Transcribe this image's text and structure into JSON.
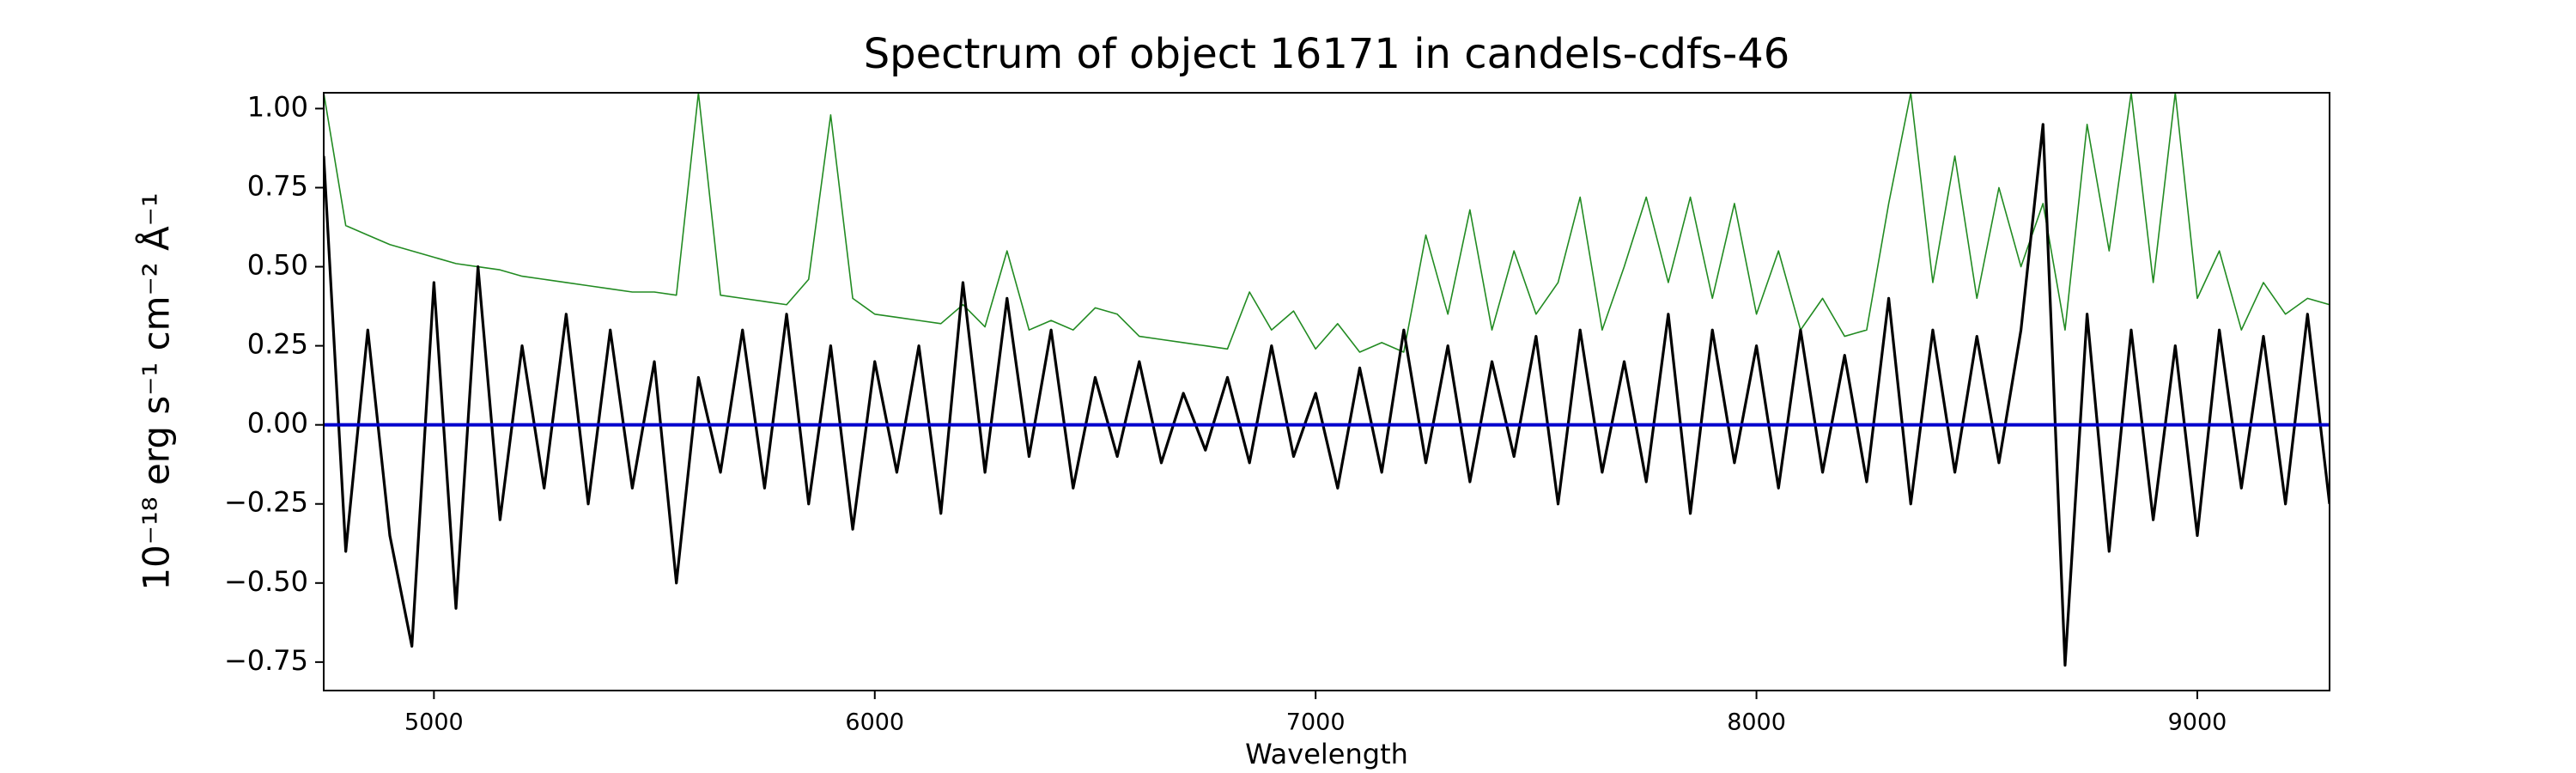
{
  "chart_data": {
    "type": "line",
    "title": "Spectrum of object 16171 in candels-cdfs-46",
    "xlabel": "Wavelength",
    "ylabel": "10⁻¹⁸ erg s⁻¹ cm⁻² Å⁻¹",
    "xlim": [
      4750,
      9300
    ],
    "ylim": [
      -0.84,
      1.05
    ],
    "xticks": [
      5000,
      6000,
      7000,
      8000,
      9000
    ],
    "yticks": [
      {
        "value": -0.75,
        "label": "−0.75"
      },
      {
        "value": -0.5,
        "label": "−0.50"
      },
      {
        "value": -0.25,
        "label": "−0.25"
      },
      {
        "value": 0,
        "label": "0.00"
      },
      0.25,
      {
        "value": 0.5,
        "label": "0.50"
      },
      0.75,
      {
        "value": 1,
        "label": "1.00"
      }
    ],
    "grid": false,
    "x": [
      4750,
      4800,
      4850,
      4900,
      4950,
      5000,
      5050,
      5100,
      5150,
      5200,
      5250,
      5300,
      5350,
      5400,
      5450,
      5500,
      5550,
      5600,
      5650,
      5700,
      5750,
      5800,
      5850,
      5900,
      5950,
      6000,
      6050,
      6100,
      6150,
      6200,
      6250,
      6300,
      6350,
      6400,
      6450,
      6500,
      6550,
      6600,
      6650,
      6700,
      6750,
      6800,
      6850,
      6900,
      6950,
      7000,
      7050,
      7100,
      7150,
      7200,
      7250,
      7300,
      7350,
      7400,
      7450,
      7500,
      7550,
      7600,
      7650,
      7700,
      7750,
      7800,
      7850,
      7900,
      7950,
      8000,
      8050,
      8100,
      8150,
      8200,
      8250,
      8300,
      8350,
      8400,
      8450,
      8500,
      8550,
      8600,
      8650,
      8700,
      8750,
      8800,
      8850,
      8900,
      8950,
      9000,
      9050,
      9100,
      9150,
      9200,
      9250,
      9300
    ],
    "series": [
      {
        "color": "#228b22",
        "values": [
          1.05,
          0.63,
          0.6,
          0.57,
          0.55,
          0.53,
          0.51,
          0.5,
          0.49,
          0.47,
          0.46,
          0.45,
          0.44,
          0.43,
          0.42,
          0.42,
          0.41,
          1.05,
          0.41,
          0.4,
          0.39,
          0.38,
          0.46,
          0.98,
          0.4,
          0.35,
          0.34,
          0.33,
          0.32,
          0.38,
          0.31,
          0.55,
          0.3,
          0.33,
          0.3,
          0.37,
          0.35,
          0.28,
          0.27,
          0.26,
          0.25,
          0.24,
          0.42,
          0.3,
          0.36,
          0.24,
          0.32,
          0.23,
          0.26,
          0.23,
          0.6,
          0.35,
          0.68,
          0.3,
          0.55,
          0.35,
          0.45,
          0.72,
          0.3,
          0.5,
          0.72,
          0.45,
          0.72,
          0.4,
          0.7,
          0.35,
          0.55,
          0.3,
          0.4,
          0.28,
          0.3,
          0.7,
          1.05,
          0.45,
          0.85,
          0.4,
          0.75,
          0.5,
          0.7,
          0.3,
          0.95,
          0.55,
          1.05,
          0.45,
          1.05,
          0.4,
          0.55,
          0.3,
          0.45,
          0.35,
          0.4,
          0.38
        ]
      },
      {
        "color": "#000000",
        "values": [
          0.85,
          -0.4,
          0.3,
          -0.35,
          -0.7,
          0.45,
          -0.58,
          0.5,
          -0.3,
          0.25,
          -0.2,
          0.35,
          -0.25,
          0.3,
          -0.2,
          0.2,
          -0.5,
          0.15,
          -0.15,
          0.3,
          -0.2,
          0.35,
          -0.25,
          0.25,
          -0.33,
          0.2,
          -0.15,
          0.25,
          -0.28,
          0.45,
          -0.15,
          0.4,
          -0.1,
          0.3,
          -0.2,
          0.15,
          -0.1,
          0.2,
          -0.12,
          0.1,
          -0.08,
          0.15,
          -0.12,
          0.25,
          -0.1,
          0.1,
          -0.2,
          0.18,
          -0.15,
          0.3,
          -0.12,
          0.25,
          -0.18,
          0.2,
          -0.1,
          0.28,
          -0.25,
          0.3,
          -0.15,
          0.2,
          -0.18,
          0.35,
          -0.28,
          0.3,
          -0.12,
          0.25,
          -0.2,
          0.3,
          -0.15,
          0.22,
          -0.18,
          0.4,
          -0.25,
          0.3,
          -0.15,
          0.28,
          -0.12,
          0.3,
          0.95,
          -0.76,
          0.35,
          -0.4,
          0.3,
          -0.3,
          0.25,
          -0.35,
          0.3,
          -0.2,
          0.28,
          -0.25,
          0.35,
          -0.25
        ]
      },
      {
        "color": "#0000cd",
        "values": [
          0,
          0,
          0,
          0,
          0,
          0,
          0,
          0,
          0,
          0,
          0,
          0,
          0,
          0,
          0,
          0,
          0,
          0,
          0,
          0,
          0,
          0,
          0,
          0,
          0,
          0,
          0,
          0,
          0,
          0,
          0,
          0,
          0,
          0,
          0,
          0,
          0,
          0,
          0,
          0,
          0,
          0,
          0,
          0,
          0,
          0,
          0,
          0,
          0,
          0,
          0,
          0,
          0,
          0,
          0,
          0,
          0,
          0,
          0,
          0,
          0,
          0,
          0,
          0,
          0,
          0,
          0,
          0,
          0,
          0,
          0,
          0,
          0,
          0,
          0,
          0,
          0,
          0,
          0,
          0,
          0,
          0,
          0,
          0,
          0,
          0,
          0,
          0,
          0,
          0,
          0,
          0
        ]
      }
    ]
  }
}
